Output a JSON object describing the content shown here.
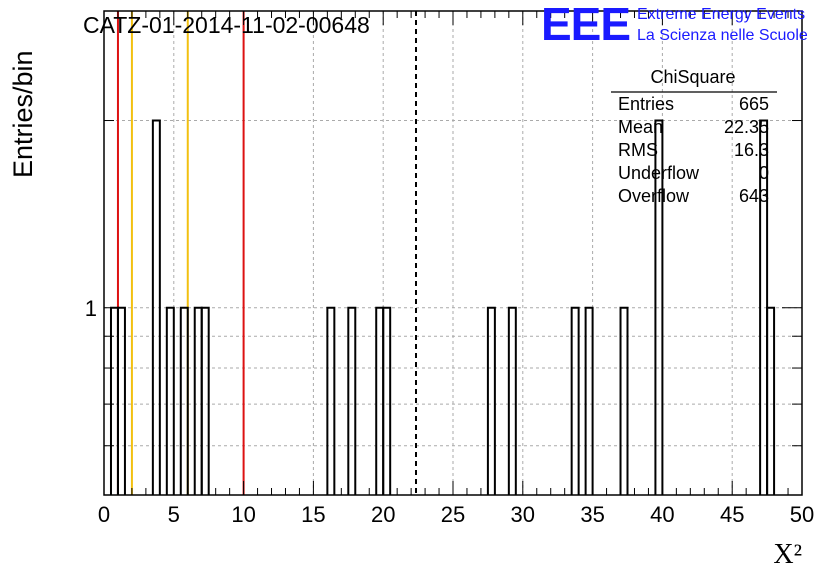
{
  "header": {
    "title": "CATZ-01-2014-11-02-00648",
    "logo": {
      "mark": "EEE",
      "line1": "Extreme Energy Events",
      "line2": "La Scienza nelle Scuole"
    }
  },
  "stats_box": {
    "name": "ChiSquare",
    "rows": [
      {
        "label": "Entries",
        "value": "665"
      },
      {
        "label": "Mean",
        "value": "22.35"
      },
      {
        "label": "RMS",
        "value": "16.3"
      },
      {
        "label": "Underflow",
        "value": "0"
      },
      {
        "label": "Overflow",
        "value": "643"
      }
    ]
  },
  "colors": {
    "red_line": "#dd1111",
    "yellow_line": "#f2c010",
    "histogram": "#000000",
    "grid": "#aaaaaa",
    "logo": "#1a1aff"
  },
  "chart_data": {
    "type": "bar",
    "histogram_style": "step",
    "title": "CATZ-01-2014-11-02-00648",
    "xlabel": "X²",
    "ylabel": "Entries/bin",
    "xlim": [
      0,
      50
    ],
    "ylim": [
      0.5,
      3
    ],
    "yscale": "log",
    "grid": true,
    "x_ticks": [
      "0",
      "5",
      "10",
      "15",
      "20",
      "25",
      "30",
      "35",
      "40",
      "45",
      "50"
    ],
    "y_ticks": [
      "1"
    ],
    "bin_width": 0.5,
    "bins": [
      {
        "x": 0.5,
        "count": 1
      },
      {
        "x": 1.0,
        "count": 1
      },
      {
        "x": 3.5,
        "count": 2
      },
      {
        "x": 4.5,
        "count": 1
      },
      {
        "x": 5.5,
        "count": 1
      },
      {
        "x": 6.5,
        "count": 1
      },
      {
        "x": 7.0,
        "count": 1
      },
      {
        "x": 16.0,
        "count": 1
      },
      {
        "x": 17.5,
        "count": 1
      },
      {
        "x": 19.5,
        "count": 1
      },
      {
        "x": 20.0,
        "count": 1
      },
      {
        "x": 27.5,
        "count": 1
      },
      {
        "x": 29.0,
        "count": 1
      },
      {
        "x": 33.5,
        "count": 1
      },
      {
        "x": 34.5,
        "count": 1
      },
      {
        "x": 37.0,
        "count": 1
      },
      {
        "x": 39.5,
        "count": 2
      },
      {
        "x": 47.0,
        "count": 2
      },
      {
        "x": 47.5,
        "count": 1
      }
    ],
    "vertical_lines": [
      {
        "x": 1,
        "color": "red"
      },
      {
        "x": 2,
        "color": "yellow"
      },
      {
        "x": 6,
        "color": "yellow"
      },
      {
        "x": 10,
        "color": "red"
      },
      {
        "x": 22.35,
        "color": "black",
        "style": "dashed"
      }
    ]
  }
}
